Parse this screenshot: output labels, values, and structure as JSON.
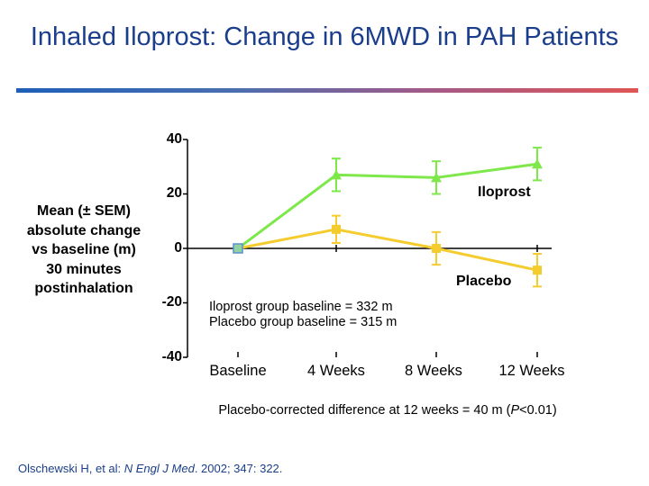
{
  "title": "Inhaled Iloprost: Change in 6MWD in PAH Patients",
  "y_axis_label_lines": [
    "Mean (± SEM)",
    "absolute change",
    "vs baseline (m)",
    "30 minutes",
    "postinhalation"
  ],
  "chart_data": {
    "type": "line",
    "title": "Inhaled Iloprost: Change in 6MWD in PAH Patients",
    "xlabel": "",
    "ylabel": "Mean (± SEM) absolute change vs baseline (m) 30 minutes postinhalation",
    "categories": [
      "Baseline",
      "4 Weeks",
      "8 Weeks",
      "12 Weeks"
    ],
    "y_ticks": [
      "40",
      "20",
      "0",
      "-20",
      "-40"
    ],
    "ylim": [
      -40,
      40
    ],
    "series": [
      {
        "name": "Iloprost",
        "color": "#7ee84a",
        "values": [
          0,
          27,
          26,
          31
        ],
        "sem": [
          0,
          6,
          6,
          6
        ]
      },
      {
        "name": "Placebo",
        "color": "#f5cc2e",
        "values": [
          0,
          7,
          0,
          -8
        ],
        "sem": [
          0,
          5,
          6,
          6
        ]
      }
    ],
    "annotations": [
      "Iloprost group baseline = 332 m",
      "Placebo group baseline = 315 m"
    ]
  },
  "footnote_prefix": "Placebo-corrected difference at 12 weeks = 40 m (",
  "footnote_p": "P",
  "footnote_suffix": "<0.01)",
  "source_authors": "Olschewski H, et al: ",
  "source_journal": "N Engl J Med",
  "source_rest": ". 2002; 347: 322."
}
